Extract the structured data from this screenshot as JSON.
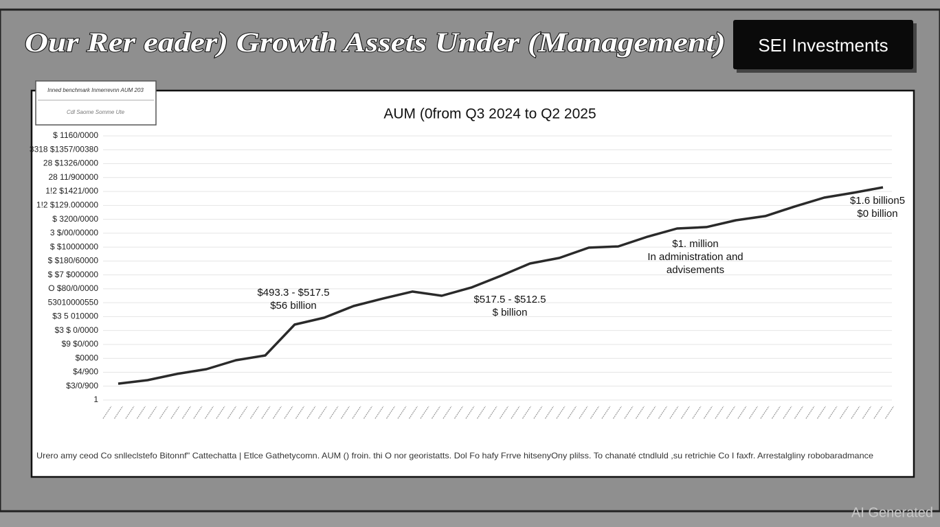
{
  "header": {
    "title": "Our Rer eader) Growth Assets Under (Management)",
    "brand": "SEI Investments"
  },
  "chart_data": {
    "type": "line",
    "title": "AUM (0from Q3 2024 to Q2 2025",
    "legend_lines": [
      "Inned benchmark Inmerrevnn AUM 203",
      "Cdl Saome Somme Ute"
    ],
    "categories": [
      null,
      null,
      null,
      null,
      null,
      null,
      null,
      null,
      null,
      null,
      null,
      null,
      null,
      null,
      null,
      null,
      null,
      null,
      null,
      null,
      null,
      null,
      null,
      null,
      null,
      null,
      null
    ],
    "values": [
      1.18,
      1.43,
      1.88,
      2.22,
      2.86,
      3.21,
      5.43,
      5.92,
      6.76,
      7.3,
      7.8,
      7.5,
      8.09,
      8.93,
      9.82,
      10.22,
      10.96,
      11.05,
      11.75,
      12.34,
      12.44,
      12.93,
      13.23,
      13.92,
      14.56,
      14.91,
      15.3
    ],
    "color": "#2a2a2a",
    "grid": true,
    "ylim": [
      0,
      19
    ],
    "yticks": [
      {
        "value": 0,
        "label": "1"
      },
      {
        "value": 1,
        "label": "$3/0/900"
      },
      {
        "value": 2,
        "label": "$4/900"
      },
      {
        "value": 3,
        "label": "$0000"
      },
      {
        "value": 4,
        "label": "$9 $0/000"
      },
      {
        "value": 5,
        "label": "$3 $ 0/0000"
      },
      {
        "value": 6,
        "label": "$3 5 010000"
      },
      {
        "value": 7,
        "label": "53010000550"
      },
      {
        "value": 8,
        "label": "O $80/0/0000"
      },
      {
        "value": 9,
        "label": "$ $7 $000000"
      },
      {
        "value": 10,
        "label": "$ $180/60000"
      },
      {
        "value": 11,
        "label": "$ $10000000"
      },
      {
        "value": 12,
        "label": "3 $/00/00000"
      },
      {
        "value": 13,
        "label": "$ 3200/0000"
      },
      {
        "value": 14,
        "label": "1!2 $129.000000"
      },
      {
        "value": 15,
        "label": "1!2 $1421/000"
      },
      {
        "value": 16,
        "label": "28 11/900000"
      },
      {
        "value": 17,
        "label": "28 $1326/0000"
      },
      {
        "value": 18,
        "label": "3318 $1357/00380"
      },
      {
        "value": 19,
        "label": "$ 1160/0000"
      }
    ],
    "annotations": [
      [
        "$493.3 - $517.5",
        "$56 billion"
      ],
      [
        "$517.5 - $512.5",
        "$ billion"
      ],
      [
        "$1. million",
        "In administration and",
        "advisements"
      ],
      [
        "$1.6 billion5",
        "$0 billion"
      ]
    ],
    "footnote": "Urero amy ceod Co snlleclstefo Bitonnf\" Cattechatta | Etlce Gathetycomn. AUM () froin. thi O nor georistatts. Dol Fo hafy Frrve hitsenyOny plilss. To chanaté ctndluld ,su retrichie Co I faxfr. Arrestalgliny robobaradmance"
  },
  "watermark": "AI Generated"
}
